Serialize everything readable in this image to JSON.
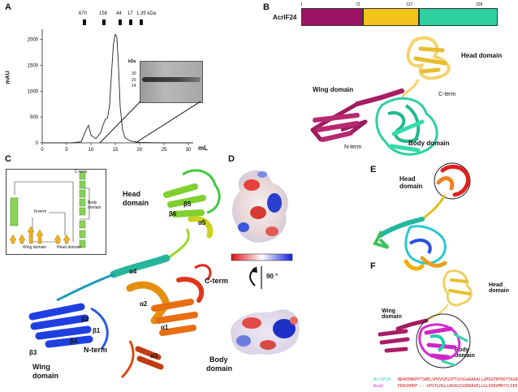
{
  "panels": {
    "a": "A",
    "b": "B",
    "c": "C",
    "d": "D",
    "e": "E",
    "f": "F"
  },
  "panel_a": {
    "markers": [
      "670",
      "158",
      "44",
      "17",
      "1.35 kDa"
    ],
    "ylabel": "mAU",
    "xlabel": "mL",
    "gel_unit": "kDa",
    "gel_ladder": [
      "30",
      "20",
      "14"
    ],
    "chart_data": {
      "type": "line",
      "xlabel": "mL",
      "ylabel": "mAU",
      "xlim": [
        0,
        31
      ],
      "ylim": [
        0,
        2200
      ],
      "xticks": [
        0,
        5,
        10,
        15,
        20,
        25,
        30
      ],
      "yticks": [
        0,
        500,
        1000,
        1500,
        2000
      ],
      "series": [
        {
          "x": [
            0,
            6,
            8,
            9,
            9.5,
            10,
            11,
            12,
            12.5,
            13,
            13.4,
            13.8,
            14.2,
            14.6,
            15,
            15.3,
            15.6,
            16,
            16.5,
            17,
            18,
            19,
            20,
            22,
            25,
            30,
            31
          ],
          "y": [
            0,
            0,
            20,
            250,
            340,
            150,
            80,
            200,
            350,
            460,
            480,
            700,
            1300,
            1900,
            2100,
            2060,
            1600,
            700,
            250,
            100,
            40,
            20,
            10,
            5,
            0,
            0,
            0
          ]
        }
      ]
    }
  },
  "panel_b": {
    "protein": "AcrIF24",
    "residue_marks": [
      "1",
      "72",
      "137",
      "228"
    ],
    "segments": [
      {
        "start": 1,
        "end": 72,
        "color": "#9b1464"
      },
      {
        "start": 72,
        "end": 137,
        "color": "#f2c31a"
      },
      {
        "start": 137,
        "end": 228,
        "color": "#2fd0a0"
      }
    ],
    "labels": {
      "head": "Head domain",
      "wing": "Wing domain",
      "cterm": "C-term",
      "nterm": "N-term",
      "body": "Body domain"
    }
  },
  "panel_c": {
    "labels": {
      "head": "Head",
      "head2": "domain",
      "cterm": "C-term",
      "nterm": "N-term",
      "wing": "Wing",
      "wing2": "domain",
      "body": "Body",
      "body2": "domain"
    },
    "greek": {
      "b1": "β1",
      "b2": "β2",
      "b3": "β3",
      "b4": "β4",
      "b5": "β5",
      "b6": "β6",
      "a1": "α1",
      "a2": "α2",
      "a3": "α3",
      "a4": "α4",
      "a5": "α5"
    },
    "topology": {
      "cterm": "C-term",
      "nterm": "N-term",
      "body": "Body domain",
      "wing": "Wing domain",
      "head": "Head domain"
    }
  },
  "panel_d": {
    "rotation": "90 °"
  },
  "panel_e": {
    "head": "Head domain"
  },
  "panel_f": {
    "head": "Head domain",
    "wing": "Wing domain",
    "body": "Body domain",
    "seq1_name": "AcrIF24",
    "seq1": "NDAEEWRPPTSWELSHVVGEGSFTGVSGAAAAALLGMSATNFRKYTAGN",
    "seq2_name": "Aca1",
    "seq2": "PDASHHDF----DPSYLHGLLKKAGISQRRAAELLGLSDRVMRYYLSED",
    "seq1_color": "#19c9a6",
    "seq2_color": "#d41fb8"
  }
}
